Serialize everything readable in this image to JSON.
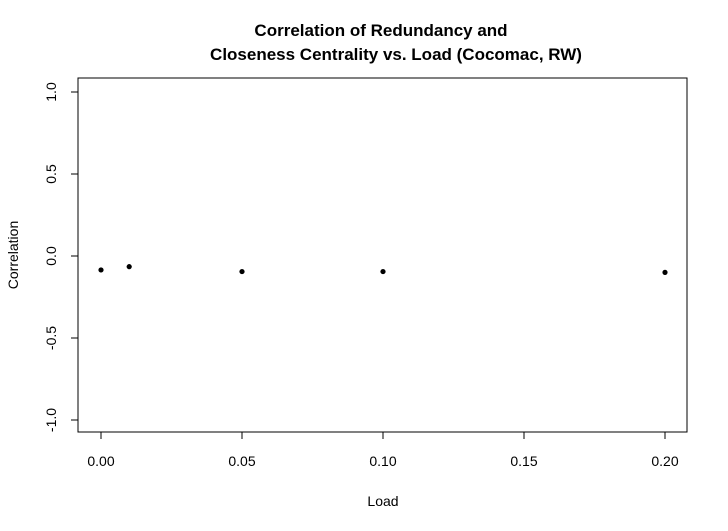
{
  "chart_data": {
    "type": "scatter",
    "title_lines": [
      "Correlation of Redundancy and",
      "Closeness Centrality vs. Load (Cocomac, RW)"
    ],
    "xlabel": "Load",
    "ylabel": "Correlation",
    "xlim": [
      0.0,
      0.2
    ],
    "ylim": [
      -1.0,
      1.0
    ],
    "xticks": [
      "0.00",
      "0.05",
      "0.10",
      "0.15",
      "0.20"
    ],
    "yticks": [
      "-1.0",
      "-0.5",
      "0.0",
      "0.5",
      "1.0"
    ],
    "grid": false,
    "legend": "none",
    "point_color": "#000000",
    "points": [
      {
        "x": 0.0,
        "y": -0.085
      },
      {
        "x": 0.01,
        "y": -0.065
      },
      {
        "x": 0.05,
        "y": -0.095
      },
      {
        "x": 0.1,
        "y": -0.095
      },
      {
        "x": 0.2,
        "y": -0.1
      }
    ]
  }
}
